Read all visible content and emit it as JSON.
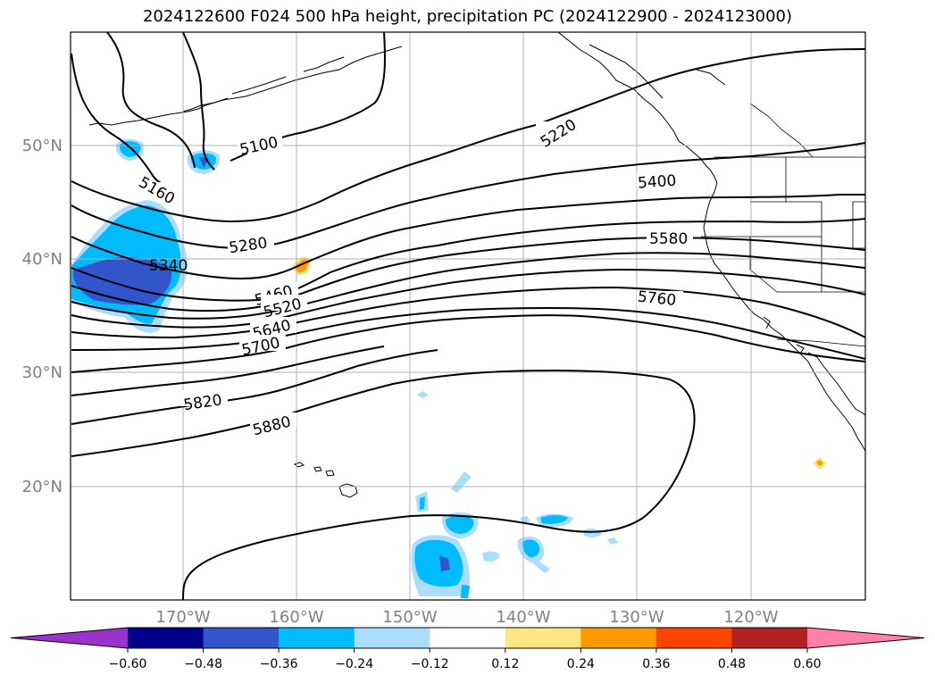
{
  "title": "2024122600 F024 500 hPa height, precipitation PC (2024122900 - 2024123000)",
  "map": {
    "lat_labels": [
      "50°N",
      "40°N",
      "30°N",
      "20°N"
    ],
    "lon_labels": [
      "170°W",
      "160°W",
      "150°W",
      "140°W",
      "130°W",
      "120°W"
    ],
    "contour_labels": [
      "5100",
      "5160",
      "5220",
      "5280",
      "5340",
      "5400",
      "5460",
      "5520",
      "5580",
      "5640",
      "5700",
      "5760",
      "5820",
      "5880"
    ]
  },
  "colorbar": {
    "ticks": [
      "−0.60",
      "−0.48",
      "−0.36",
      "−0.24",
      "−0.12",
      "0.12",
      "0.24",
      "0.36",
      "0.48",
      "0.60"
    ],
    "colors": [
      "#9933cc",
      "#00008b",
      "#3355cc",
      "#00bbff",
      "#aaddff",
      "#ffffff",
      "#ffe680",
      "#ff9900",
      "#ff4400",
      "#b22222",
      "#ff80aa"
    ]
  }
}
